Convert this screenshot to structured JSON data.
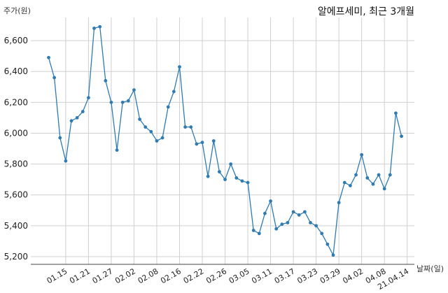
{
  "chart_data": {
    "type": "line",
    "title": "알에프세미, 최근 3개월",
    "ylabel": "주가(원)",
    "xlabel": "날짜(일)",
    "ylim": [
      5150,
      6750
    ],
    "y_ticks": [
      "5,200",
      "5,400",
      "5,600",
      "5,800",
      "6,000",
      "6,200",
      "6,400",
      "6,600"
    ],
    "y_tick_values": [
      5200,
      5400,
      5600,
      5800,
      6000,
      6200,
      6400,
      6600
    ],
    "x_tick_labels": [
      "01.15",
      "01.21",
      "01.27",
      "02.02",
      "02.08",
      "02.16",
      "02.22",
      "02.26",
      "03.05",
      "03.11",
      "03.17",
      "03.23",
      "03.29",
      "04.02",
      "04.08",
      "21.04.14"
    ],
    "x_tick_index": [
      3,
      7,
      11,
      15,
      19,
      23,
      27,
      31,
      35,
      39,
      43,
      47,
      51,
      55,
      59,
      63
    ],
    "grid": true,
    "series_color": "#2f7bb2",
    "series": [
      {
        "values": [
          6490,
          6360,
          5970,
          5820,
          6080,
          6100,
          6140,
          6230,
          6680,
          6690,
          6340,
          6200,
          5890,
          6200,
          6210,
          6280,
          6090,
          6040,
          6010,
          5950,
          5970,
          6170,
          6270,
          6430,
          6040,
          6040,
          5930,
          5940,
          5720,
          5950,
          5750,
          5700,
          5800,
          5710,
          5690,
          5680,
          5370,
          5350,
          5480,
          5560,
          5380,
          5410,
          5420,
          5490,
          5470,
          5490,
          5420,
          5400,
          5350,
          5280,
          5210,
          5550,
          5680,
          5660,
          5730,
          5860,
          5710,
          5670,
          5730,
          5640,
          5730,
          6130,
          5980
        ]
      }
    ]
  }
}
